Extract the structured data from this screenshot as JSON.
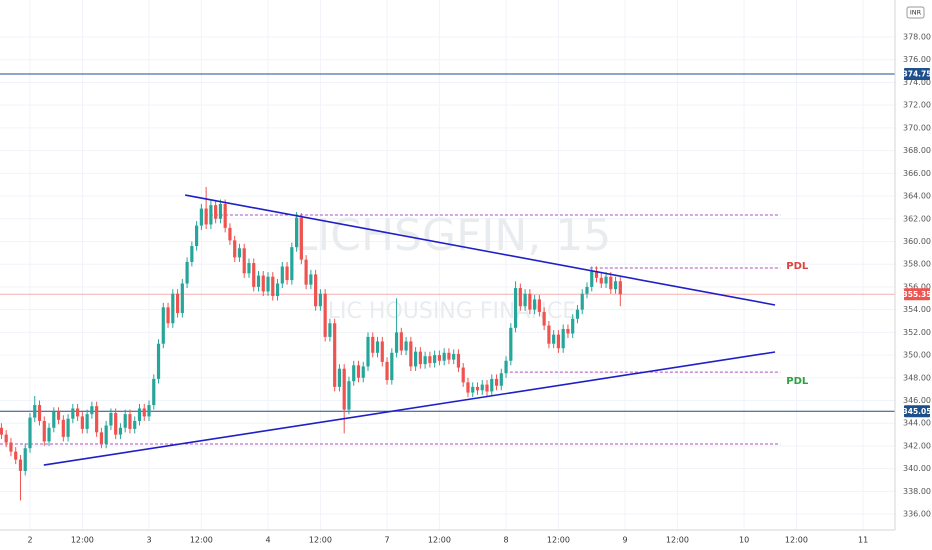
{
  "chart_data": {
    "type": "candlestick",
    "watermark": "LICHSGFIN, 15",
    "watermark_subtitle": "LIC HOUSING FINANCE",
    "currency": "INR",
    "up_color": "#26a69a",
    "down_color": "#ef5350",
    "grid": true,
    "x": [
      0,
      1,
      2,
      3,
      4,
      5,
      6,
      7,
      8,
      9,
      10,
      11,
      12,
      13,
      14,
      15,
      16,
      17,
      18,
      19,
      20,
      21,
      22,
      23,
      24,
      25,
      26,
      27,
      28,
      29,
      30,
      31,
      32,
      33,
      34,
      35,
      36,
      37,
      38,
      39,
      40,
      41,
      42,
      43,
      44,
      45,
      46,
      47,
      48,
      49,
      50,
      51,
      52,
      53,
      54,
      55,
      56,
      57,
      58,
      59,
      60,
      61,
      62,
      63,
      64,
      65,
      66,
      67,
      68,
      69,
      70,
      71,
      72,
      73,
      74,
      75,
      76,
      77,
      78,
      79,
      80,
      81,
      82,
      83,
      84,
      85,
      86,
      87,
      88,
      89,
      90,
      91,
      92,
      93,
      94,
      95,
      96,
      97,
      98,
      99,
      100,
      101,
      102,
      103,
      104,
      105,
      106,
      107,
      108,
      109,
      110,
      111,
      112,
      113,
      114,
      115,
      116,
      117,
      118,
      119,
      120,
      121,
      122,
      123,
      124,
      125,
      126,
      127,
      128,
      129,
      130
    ],
    "open": [
      343.6,
      343.0,
      342.3,
      341.5,
      340.8,
      339.8,
      341.8,
      344.5,
      345.6,
      344.2,
      342.4,
      343.6,
      345.0,
      344.3,
      342.8,
      344.4,
      345.3,
      344.6,
      343.5,
      344.8,
      345.5,
      343.2,
      342.2,
      343.8,
      344.9,
      343.0,
      343.6,
      344.8,
      343.5,
      344.2,
      345.3,
      344.6,
      345.6,
      347.9,
      351.0,
      354.2,
      352.8,
      355.4,
      353.7,
      356.3,
      358.2,
      359.6,
      361.4,
      362.9,
      361.5,
      363.2,
      362.0,
      363.3,
      361.2,
      360.1,
      358.6,
      359.4,
      357.2,
      358.1,
      356.0,
      357.0,
      355.6,
      356.9,
      355.2,
      356.3,
      357.8,
      356.6,
      359.5,
      362.1,
      358.4,
      356.2,
      357.1,
      354.3,
      355.4,
      351.6,
      352.8,
      347.2,
      348.8,
      345.2,
      347.7,
      349.1,
      348.0,
      349.0,
      351.6,
      350.2,
      351.2,
      349.4,
      347.8,
      350.2,
      352.0,
      350.4,
      351.2,
      349.0,
      350.3,
      349.2,
      349.9,
      349.3,
      350.0,
      349.5,
      350.2,
      349.6,
      350.1,
      348.9,
      347.6,
      346.7,
      347.2,
      346.9,
      347.4,
      346.8,
      347.9,
      347.3,
      348.4,
      349.5,
      352.4,
      355.9,
      354.3,
      355.4,
      354.0,
      354.9,
      353.8,
      352.6,
      351.0,
      351.8,
      350.6,
      352.3,
      351.9,
      353.2,
      354.0,
      355.4,
      356.0,
      357.4,
      356.8,
      356.3,
      356.9,
      355.8,
      356.5
    ],
    "high": [
      344.0,
      343.4,
      342.7,
      341.9,
      341.2,
      342.2,
      344.9,
      346.4,
      346.0,
      344.6,
      344.0,
      345.4,
      345.4,
      344.7,
      344.8,
      345.7,
      345.7,
      345.0,
      345.2,
      345.9,
      345.9,
      343.6,
      344.2,
      345.3,
      345.3,
      344.0,
      345.2,
      345.2,
      344.6,
      345.7,
      345.7,
      346.0,
      348.3,
      351.4,
      354.6,
      354.6,
      355.8,
      355.8,
      356.7,
      358.6,
      360.0,
      361.8,
      363.3,
      364.8,
      363.6,
      363.6,
      363.7,
      363.7,
      361.6,
      360.5,
      359.8,
      359.8,
      358.5,
      358.5,
      357.4,
      357.4,
      357.3,
      357.3,
      356.7,
      358.2,
      358.2,
      359.9,
      362.6,
      362.5,
      358.8,
      357.5,
      357.5,
      355.8,
      355.8,
      353.2,
      353.2,
      349.2,
      349.2,
      348.1,
      349.5,
      349.5,
      349.4,
      352.0,
      352.0,
      351.6,
      351.6,
      349.8,
      350.6,
      355.0,
      352.4,
      351.6,
      351.6,
      350.7,
      350.7,
      350.3,
      350.3,
      350.4,
      350.4,
      350.6,
      350.6,
      350.5,
      350.5,
      349.3,
      348.0,
      347.6,
      347.6,
      347.8,
      347.8,
      348.3,
      348.3,
      348.8,
      349.9,
      352.8,
      356.5,
      356.3,
      355.8,
      355.8,
      355.3,
      355.3,
      354.2,
      353.0,
      352.2,
      352.2,
      352.7,
      352.7,
      353.6,
      354.4,
      355.8,
      356.4,
      357.8,
      357.8,
      357.2,
      357.3,
      357.3,
      356.9,
      356.9
    ],
    "low": [
      342.6,
      341.9,
      341.1,
      340.4,
      337.2,
      339.4,
      341.4,
      344.1,
      343.8,
      342.0,
      342.0,
      343.2,
      343.9,
      342.4,
      342.4,
      344.0,
      344.2,
      343.1,
      343.1,
      344.4,
      342.8,
      341.8,
      341.8,
      343.4,
      342.6,
      342.6,
      343.2,
      343.1,
      343.1,
      343.8,
      344.2,
      344.2,
      345.2,
      347.5,
      350.6,
      352.4,
      352.4,
      353.3,
      353.3,
      355.9,
      357.8,
      359.2,
      361.0,
      361.1,
      361.1,
      361.6,
      361.6,
      360.8,
      359.7,
      358.2,
      358.2,
      356.8,
      356.8,
      355.6,
      355.6,
      355.2,
      355.2,
      354.8,
      354.8,
      355.9,
      356.2,
      356.2,
      359.1,
      358.0,
      355.8,
      355.8,
      353.9,
      353.9,
      351.2,
      351.2,
      346.8,
      346.8,
      343.1,
      344.8,
      347.3,
      347.6,
      347.6,
      348.6,
      349.8,
      349.8,
      349.0,
      347.4,
      347.4,
      349.8,
      350.0,
      350.0,
      348.6,
      348.6,
      348.8,
      348.8,
      348.9,
      348.9,
      349.1,
      349.1,
      349.2,
      349.2,
      348.5,
      347.2,
      346.3,
      346.3,
      346.5,
      346.5,
      346.4,
      346.4,
      346.9,
      346.9,
      348.0,
      349.1,
      352.0,
      353.9,
      353.9,
      353.6,
      353.6,
      353.4,
      352.2,
      350.6,
      350.6,
      350.2,
      350.2,
      351.5,
      351.5,
      352.8,
      353.6,
      355.0,
      355.6,
      356.4,
      355.9,
      355.9,
      355.4,
      355.4,
      354.3
    ],
    "close": [
      343.0,
      342.3,
      341.5,
      340.8,
      339.8,
      341.8,
      344.5,
      345.6,
      344.2,
      342.4,
      343.6,
      345.0,
      344.3,
      342.8,
      344.4,
      345.3,
      344.6,
      343.5,
      344.8,
      345.5,
      343.2,
      342.2,
      343.8,
      344.9,
      343.0,
      343.6,
      344.8,
      343.5,
      344.2,
      345.3,
      344.6,
      345.6,
      347.9,
      351.0,
      354.2,
      352.8,
      355.4,
      353.7,
      356.3,
      358.2,
      359.6,
      361.4,
      362.9,
      361.5,
      363.2,
      362.0,
      363.3,
      361.2,
      360.1,
      358.6,
      359.4,
      357.2,
      358.1,
      356.0,
      357.0,
      355.6,
      356.9,
      355.2,
      356.3,
      357.8,
      356.6,
      359.5,
      362.1,
      358.4,
      356.2,
      357.1,
      354.3,
      355.4,
      351.6,
      352.8,
      347.2,
      348.8,
      345.2,
      347.7,
      349.1,
      348.0,
      349.0,
      351.6,
      350.2,
      351.2,
      349.4,
      347.8,
      350.2,
      352.0,
      350.4,
      351.2,
      349.0,
      350.3,
      349.2,
      349.9,
      349.3,
      350.0,
      349.5,
      350.2,
      349.6,
      350.1,
      348.9,
      347.6,
      346.7,
      347.2,
      346.9,
      347.4,
      346.8,
      347.9,
      347.3,
      348.4,
      349.5,
      352.4,
      355.9,
      354.3,
      355.4,
      354.0,
      354.9,
      353.8,
      352.6,
      351.0,
      351.8,
      350.6,
      352.3,
      351.9,
      353.2,
      354.0,
      355.4,
      356.0,
      357.4,
      356.8,
      356.3,
      356.9,
      355.8,
      356.5,
      355.35
    ],
    "xlim": [
      -0.3,
      187.7
    ],
    "ylim": [
      334.6,
      381.26
    ],
    "xticks": [
      {
        "value": 6,
        "label": "2"
      },
      {
        "value": 17,
        "label": "12:00"
      },
      {
        "value": 31,
        "label": "3"
      },
      {
        "value": 42,
        "label": "12:00"
      },
      {
        "value": 56,
        "label": "4"
      },
      {
        "value": 67,
        "label": "12:00"
      },
      {
        "value": 81,
        "label": "7"
      },
      {
        "value": 92,
        "label": "12:00"
      },
      {
        "value": 106,
        "label": "8"
      },
      {
        "value": 117,
        "label": "12:00"
      },
      {
        "value": 131,
        "label": "9"
      },
      {
        "value": 142,
        "label": "12:00"
      },
      {
        "value": 156,
        "label": "10"
      },
      {
        "value": 167,
        "label": "12:00"
      },
      {
        "value": 181,
        "label": "11"
      }
    ],
    "yticks": [
      {
        "value": 336,
        "label": "336.00"
      },
      {
        "value": 338,
        "label": "338.00"
      },
      {
        "value": 340,
        "label": "340.00"
      },
      {
        "value": 342,
        "label": "342.00"
      },
      {
        "value": 344,
        "label": "344.00"
      },
      {
        "value": 346,
        "label": "346.00"
      },
      {
        "value": 348,
        "label": "348.00"
      },
      {
        "value": 350,
        "label": "350.00"
      },
      {
        "value": 352,
        "label": "352.00"
      },
      {
        "value": 354,
        "label": "354.00"
      },
      {
        "value": 356,
        "label": "356.00"
      },
      {
        "value": 358,
        "label": "358.00"
      },
      {
        "value": 360,
        "label": "360.00"
      },
      {
        "value": 362,
        "label": "362.00"
      },
      {
        "value": 364,
        "label": "364.00"
      },
      {
        "value": 366,
        "label": "366.00"
      },
      {
        "value": 368,
        "label": "368.00"
      },
      {
        "value": 370,
        "label": "370.00"
      },
      {
        "value": 372,
        "label": "372.00"
      },
      {
        "value": 374,
        "label": "374.00"
      },
      {
        "value": 376,
        "label": "376.00"
      },
      {
        "value": 378,
        "label": "378.00"
      }
    ],
    "horizontal_lines": [
      {
        "value": 374.75,
        "color": "#1c4f8c"
      },
      {
        "value": 345.05,
        "color": "#1c4f8c"
      },
      {
        "value": 355.35,
        "color": "#ef5350"
      }
    ],
    "trendlines": [
      {
        "x": [
          38.6,
          162.5
        ],
        "y": [
          364.09,
          354.41
        ],
        "color": "#1f1fc8"
      },
      {
        "x": [
          8.9,
          162.5
        ],
        "y": [
          340.32,
          350.27
        ],
        "color": "#1f1fc8"
      }
    ],
    "levels": [
      {
        "value": 362.33,
        "x": [
          41.7,
          163.6
        ],
        "color": "#b04ec0"
      },
      {
        "value": 357.67,
        "x": [
          123.6,
          163.6
        ],
        "color": "#b04ec0",
        "label": "PDL",
        "label_color": "#e0413f"
      },
      {
        "value": 348.5,
        "x": [
          106.8,
          163.6
        ],
        "color": "#b04ec0",
        "label": "PDL",
        "label_color": "#2ea043"
      },
      {
        "value": 342.17,
        "x": [
          -0.3,
          163.6
        ],
        "color": "#b04ec0"
      }
    ]
  }
}
